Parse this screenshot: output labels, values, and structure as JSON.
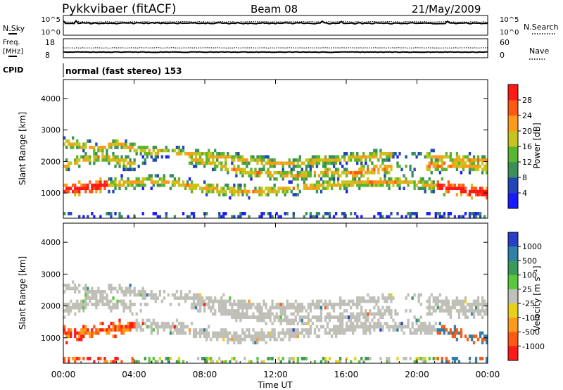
{
  "header": {
    "station": "Pykkvibaer (fitACF)",
    "beam": "Beam 08",
    "date": "21/May/2009"
  },
  "noise_panel": {
    "left_label": "N.Sky",
    "left_ticks": [
      "10^5",
      "10^0"
    ],
    "right_label": "N.Search",
    "right_ticks": [
      "10^5",
      "10^0"
    ]
  },
  "freq_panel": {
    "left_label_line1": "Freq.",
    "left_label_line2": "[MHz]",
    "left_ticks": [
      "18",
      "8"
    ],
    "right_label": "Nave",
    "right_ticks": [
      "60",
      "0"
    ]
  },
  "cpid": {
    "label": "CPID",
    "value": "normal (fast stereo) 153"
  },
  "chart_data": [
    {
      "type": "heatmap",
      "title": "",
      "xlabel": "Time UT",
      "ylabel": "Slant Range [km]",
      "xlim": [
        "00:00",
        "24:00"
      ],
      "ylim": [
        200,
        4600
      ],
      "yticks": [
        "1000",
        "2000",
        "3000",
        "4000"
      ],
      "xticks": [
        "00:00",
        "04:00",
        "08:00",
        "12:00",
        "16:00",
        "20:00",
        "00:00"
      ],
      "colorbar": {
        "label": "Power [dB]",
        "ticks": [
          "4",
          "8",
          "12",
          "16",
          "20",
          "24",
          "28"
        ],
        "colors": [
          "#1a1aff",
          "#2046b8",
          "#3b8f5a",
          "#5ab52f",
          "#c8c31d",
          "#ff9a1a",
          "#ff5a14",
          "#ff1a1a"
        ]
      },
      "bands": [
        {
          "name": "main",
          "t": [
            0,
            1,
            2,
            3,
            4,
            5,
            6,
            7,
            8,
            9,
            10,
            11,
            12,
            13,
            14,
            15,
            16,
            17,
            18,
            19,
            20,
            21,
            22,
            23,
            24
          ],
          "r": [
            1850,
            2050,
            2150,
            2050,
            1900,
            2150,
            2250,
            2100,
            2000,
            1850,
            1700,
            1650,
            1600,
            1550,
            1600,
            1650,
            1600,
            1700,
            1800,
            1850,
            1850,
            1900,
            1900,
            1850,
            1750
          ]
        },
        {
          "name": "far",
          "t": [
            0,
            1,
            2,
            3,
            4,
            5,
            6,
            7,
            8,
            9,
            10,
            11,
            12,
            13,
            14,
            15,
            16,
            17,
            18,
            19,
            20,
            21,
            22,
            23,
            24
          ],
          "r": [
            2600,
            2500,
            2400,
            2600,
            2400,
            2300,
            2300,
            2250,
            2200,
            2150,
            2050,
            2000,
            1950,
            1950,
            2000,
            2050,
            2100,
            2150,
            2200,
            2250,
            2200,
            2150,
            2100,
            2050,
            2050
          ]
        },
        {
          "name": "near",
          "t": [
            0,
            1,
            2,
            3,
            4,
            5,
            6,
            7,
            8,
            9,
            10,
            11,
            12,
            13,
            14,
            15,
            16,
            17,
            18,
            19,
            20,
            21,
            22,
            23,
            24
          ],
          "r": [
            1100,
            1150,
            1250,
            1300,
            1350,
            1400,
            1350,
            1250,
            1150,
            1100,
            1050,
            1050,
            1100,
            1150,
            1200,
            1250,
            1300,
            1350,
            1350,
            1350,
            1300,
            1250,
            1150,
            1050,
            1000
          ]
        }
      ]
    },
    {
      "type": "heatmap",
      "title": "",
      "xlabel": "Time UT",
      "ylabel": "Slant Range [km]",
      "xlim": [
        "00:00",
        "24:00"
      ],
      "ylim": [
        200,
        4600
      ],
      "yticks": [
        "1000",
        "2000",
        "3000",
        "4000"
      ],
      "xticks": [
        "00:00",
        "04:00",
        "08:00",
        "12:00",
        "16:00",
        "20:00",
        "00:00"
      ],
      "colorbar": {
        "label": "Velocity [m s⁻¹]",
        "ticks": [
          "1000",
          "500",
          "100",
          "25",
          "-25",
          "-100",
          "-500",
          "-1000"
        ],
        "colors": [
          "#2840c8",
          "#2f7fa8",
          "#3b9a5a",
          "#5ac83c",
          "#c0c0b8",
          "#e6d21a",
          "#ff9a1a",
          "#ff5a14",
          "#ff1a1a"
        ]
      }
    }
  ]
}
